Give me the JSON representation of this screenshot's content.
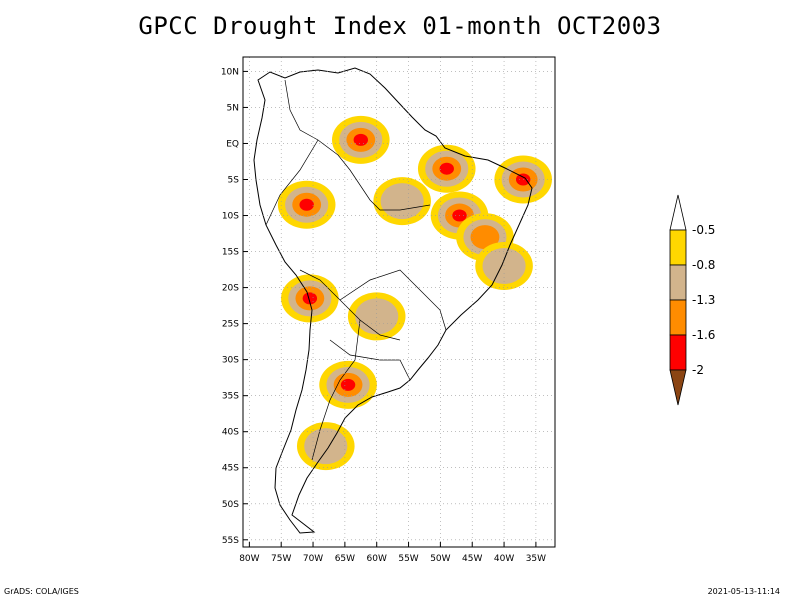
{
  "title": "GPCC Drought Index 01-month OCT2003",
  "footer": {
    "left": "GrADS: COLA/IGES",
    "right": "2021-05-13-11:14"
  },
  "map": {
    "region": "South America",
    "lon_range": [
      -81,
      -32
    ],
    "lat_range": [
      -56,
      12
    ],
    "grid": true,
    "lat_ticks": [
      {
        "value": 10,
        "label": "10N"
      },
      {
        "value": 5,
        "label": "5N"
      },
      {
        "value": 0,
        "label": "EQ"
      },
      {
        "value": -5,
        "label": "5S"
      },
      {
        "value": -10,
        "label": "10S"
      },
      {
        "value": -15,
        "label": "15S"
      },
      {
        "value": -20,
        "label": "20S"
      },
      {
        "value": -25,
        "label": "25S"
      },
      {
        "value": -30,
        "label": "30S"
      },
      {
        "value": -35,
        "label": "35S"
      },
      {
        "value": -40,
        "label": "40S"
      },
      {
        "value": -45,
        "label": "45S"
      },
      {
        "value": -50,
        "label": "50S"
      },
      {
        "value": -55,
        "label": "55S"
      }
    ],
    "lon_ticks": [
      {
        "value": -80,
        "label": "80W"
      },
      {
        "value": -75,
        "label": "75W"
      },
      {
        "value": -70,
        "label": "70W"
      },
      {
        "value": -65,
        "label": "65W"
      },
      {
        "value": -60,
        "label": "60W"
      },
      {
        "value": -55,
        "label": "55W"
      },
      {
        "value": -50,
        "label": "50W"
      },
      {
        "value": -45,
        "label": "45W"
      },
      {
        "value": -40,
        "label": "40W"
      },
      {
        "value": -35,
        "label": "35W"
      }
    ]
  },
  "legend": {
    "bins": [
      {
        "color": "#ffffff",
        "label": "-0.5"
      },
      {
        "color": "#ffd700",
        "label": "-0.8"
      },
      {
        "color": "#d2b48c",
        "label": "-1.3"
      },
      {
        "color": "#ff8c00",
        "label": "-1.6"
      },
      {
        "color": "#ff0000",
        "label": "-2"
      },
      {
        "color": "#8b4513",
        "label": ""
      }
    ]
  },
  "drought_patches": [
    {
      "lon": -62.5,
      "lat": 0.5,
      "level": 3
    },
    {
      "lon": -71,
      "lat": -8.5,
      "level": 3
    },
    {
      "lon": -64.5,
      "lat": -33.5,
      "level": 3
    },
    {
      "lon": -47,
      "lat": -10,
      "level": 3
    },
    {
      "lon": -49,
      "lat": -3.5,
      "level": 3
    },
    {
      "lon": -37,
      "lat": -5,
      "level": 3
    },
    {
      "lon": -70.5,
      "lat": -21.5,
      "level": 3
    },
    {
      "lon": -43,
      "lat": -13,
      "level": 2
    },
    {
      "lon": -56,
      "lat": -8,
      "level": 1
    },
    {
      "lon": -60,
      "lat": -24,
      "level": 1
    },
    {
      "lon": -68,
      "lat": -42,
      "level": 1
    },
    {
      "lon": -40,
      "lat": -17,
      "level": 1
    }
  ]
}
